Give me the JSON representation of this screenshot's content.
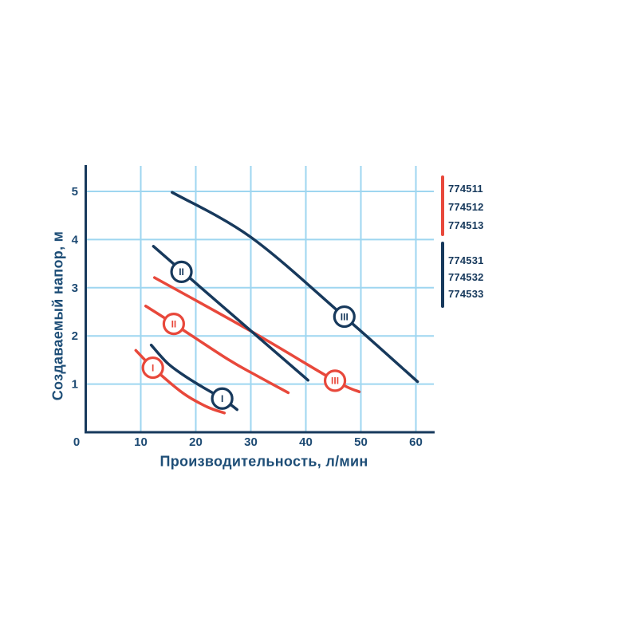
{
  "page": {
    "background": "#ffffff"
  },
  "chart_data": {
    "type": "line",
    "title": "",
    "xlabel": "Производительность, л/мин",
    "ylabel": "Создаваемый напор, м",
    "xlim": [
      0,
      63
    ],
    "ylim": [
      0,
      5.5
    ],
    "xticks": [
      0,
      10,
      20,
      30,
      40,
      50,
      60
    ],
    "yticks": [
      1,
      2,
      3,
      4,
      5
    ],
    "grid": true,
    "legend_position": "right",
    "series": [
      {
        "color_key": "red",
        "marker_label": "I",
        "marker_at": [
          12.2,
          1.34
        ],
        "points": [
          [
            9.1,
            1.7
          ],
          [
            12.2,
            1.34
          ],
          [
            17.7,
            0.81
          ],
          [
            22.0,
            0.53
          ],
          [
            25.2,
            0.4
          ]
        ]
      },
      {
        "color_key": "red",
        "marker_label": "II",
        "marker_at": [
          16.0,
          2.25
        ],
        "points": [
          [
            10.9,
            2.62
          ],
          [
            16.0,
            2.25
          ],
          [
            25.9,
            1.51
          ],
          [
            31.0,
            1.18
          ],
          [
            36.8,
            0.82
          ]
        ]
      },
      {
        "color_key": "red",
        "marker_label": "III",
        "marker_at": [
          45.3,
          1.07
        ],
        "points": [
          [
            12.5,
            3.21
          ],
          [
            30.0,
            2.1
          ],
          [
            45.3,
            1.07
          ],
          [
            49.7,
            0.84
          ]
        ]
      },
      {
        "color_key": "navy",
        "marker_label": "I",
        "marker_at": [
          24.8,
          0.7
        ],
        "points": [
          [
            11.9,
            1.81
          ],
          [
            14.8,
            1.44
          ],
          [
            17.7,
            1.19
          ],
          [
            20.6,
            0.98
          ],
          [
            24.8,
            0.7
          ],
          [
            27.5,
            0.47
          ]
        ]
      },
      {
        "color_key": "navy",
        "marker_label": "II",
        "marker_at": [
          17.4,
          3.33
        ],
        "points": [
          [
            12.3,
            3.86
          ],
          [
            25.0,
            2.6
          ],
          [
            40.4,
            1.08
          ]
        ]
      },
      {
        "color_key": "navy",
        "marker_label": "III",
        "marker_at": [
          47.0,
          2.4
        ],
        "points": [
          [
            15.7,
            4.98
          ],
          [
            30.0,
            4.05
          ],
          [
            47.0,
            2.4
          ],
          [
            60.3,
            1.05
          ]
        ]
      }
    ]
  },
  "legend": {
    "groups": [
      {
        "color_key": "red",
        "items": [
          "774511",
          "774512",
          "774513"
        ]
      },
      {
        "color_key": "navy",
        "items": [
          "774531",
          "774532",
          "774533"
        ]
      }
    ]
  },
  "colors": {
    "red": "#e8483b",
    "navy": "#17395c",
    "grid": "#9ed6f0",
    "axis": "#17395c",
    "tick_text": "#1d4a73",
    "title_text": "#1e4e77"
  }
}
